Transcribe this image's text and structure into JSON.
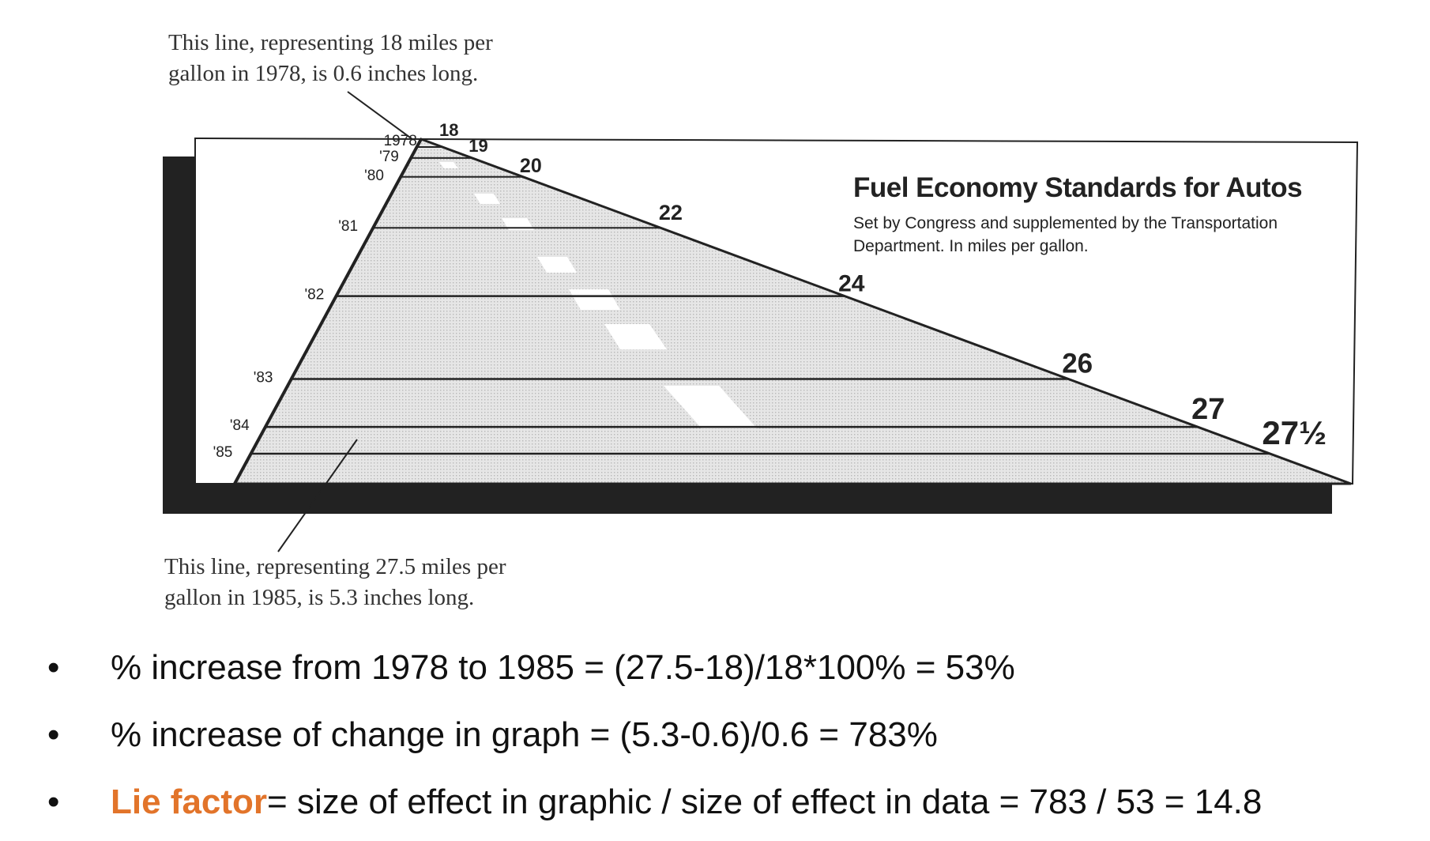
{
  "notes": {
    "top_line1": "This line, representing 18 miles per",
    "top_line2": "gallon in 1978, is 0.6 inches long.",
    "bottom_line1": "This line, representing 27.5 miles per",
    "bottom_line2": "gallon in 1985, is 5.3 inches long."
  },
  "chart_data": {
    "type": "bar",
    "title": "Fuel Economy Standards for Autos",
    "subtitle_line1": "Set by Congress and supplemented by the Transportation",
    "subtitle_line2": "Department. In miles per gallon.",
    "categories": [
      "1978",
      "'79",
      "'80",
      "'81",
      "'82",
      "'83",
      "'84",
      "'85"
    ],
    "value_labels": [
      "18",
      "19",
      "20",
      "22",
      "24",
      "26",
      "27",
      "27½"
    ],
    "values": [
      18,
      19,
      20,
      22,
      24,
      26,
      27,
      27.5
    ],
    "xlabel": "",
    "ylabel": ""
  },
  "bullets": [
    {
      "text": "% increase from 1978 to 1985 = (27.5-18)/18*100% = 53%"
    },
    {
      "text": "% increase of change in graph = (5.3-0.6)/0.6 = 783%"
    },
    {
      "accent": "Lie factor",
      "text": " = size of effect in graphic / size of effect in data = 783 / 53 = 14.8"
    }
  ],
  "colors": {
    "accent": "#e2742a",
    "road_fill": "#d9d9d9",
    "frame": "#222222"
  }
}
